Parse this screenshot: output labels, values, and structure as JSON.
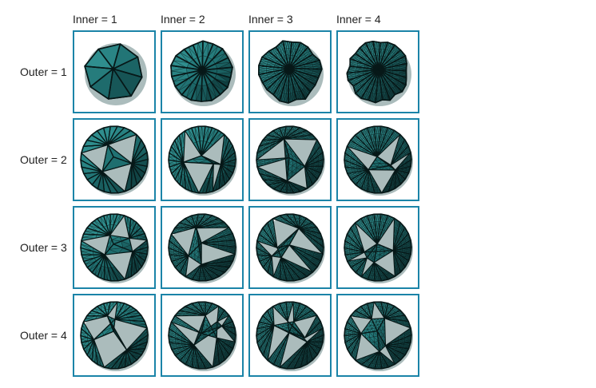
{
  "columns": [
    {
      "label": "Inner = 1",
      "inner": 1
    },
    {
      "label": "Inner = 2",
      "inner": 2
    },
    {
      "label": "Inner = 3",
      "inner": 3
    },
    {
      "label": "Inner = 4",
      "inner": 4
    }
  ],
  "rows": [
    {
      "label": "Outer = 1",
      "outer": 1
    },
    {
      "label": "Outer = 2",
      "outer": 2
    },
    {
      "label": "Outer = 3",
      "outer": 3
    },
    {
      "label": "Outer = 4",
      "outer": 4
    }
  ],
  "colors": {
    "border": "#1b84a8",
    "surface_light": "#2f8e8e",
    "surface": "#1f6f70",
    "surface_dark": "#0f3f40",
    "edge": "#071818"
  },
  "subject_icon": "tessellated-sphere-icon"
}
